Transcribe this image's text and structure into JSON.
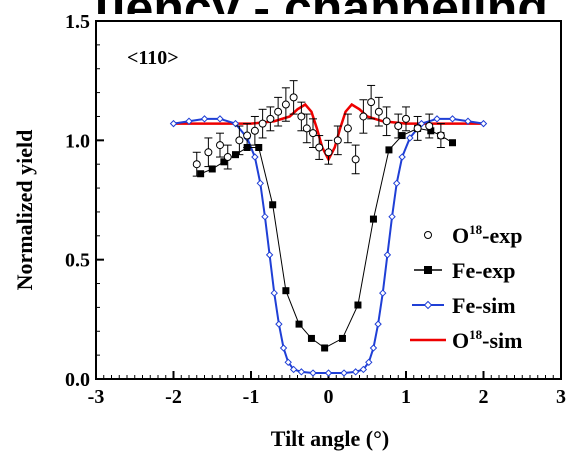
{
  "chart_data": {
    "type": "scatter",
    "title_fragment": "uency - channeling",
    "xlabel": "Tilt angle (°)",
    "ylabel": "Normalized yield",
    "annotation": "<110>",
    "xlim": [
      -3,
      3
    ],
    "ylim": [
      0.0,
      1.5
    ],
    "x_ticks": [
      "-3",
      "-2",
      "-1",
      "0",
      "1",
      "2",
      "3"
    ],
    "y_ticks": [
      "0.0",
      "0.5",
      "1.0",
      "1.5"
    ],
    "legend_position": "right",
    "legend": [
      {
        "base": "O",
        "sup": "18",
        "suffix": "-exp",
        "marker": "open-circle",
        "color": "#000000"
      },
      {
        "base": "Fe-exp",
        "sup": "",
        "suffix": "",
        "marker": "filled-square",
        "color": "#000000"
      },
      {
        "base": "Fe-sim",
        "sup": "",
        "suffix": "",
        "marker": "open-diamond",
        "color": "#1f3fd6"
      },
      {
        "base": "O",
        "sup": "18",
        "suffix": "-sim",
        "marker": "none",
        "color": "#ee0000"
      }
    ],
    "series": [
      {
        "name": "O18-exp",
        "style": "open-circle-errorbars",
        "color": "#000000",
        "points": [
          [
            -1.7,
            0.9,
            0.05
          ],
          [
            -1.55,
            0.95,
            0.06
          ],
          [
            -1.4,
            0.98,
            0.05
          ],
          [
            -1.3,
            0.93,
            0.05
          ],
          [
            -1.15,
            1.0,
            0.06
          ],
          [
            -1.05,
            1.02,
            0.05
          ],
          [
            -0.95,
            1.04,
            0.06
          ],
          [
            -0.85,
            1.07,
            0.06
          ],
          [
            -0.75,
            1.09,
            0.05
          ],
          [
            -0.65,
            1.12,
            0.06
          ],
          [
            -0.55,
            1.15,
            0.07
          ],
          [
            -0.45,
            1.18,
            0.07
          ],
          [
            -0.35,
            1.1,
            0.06
          ],
          [
            -0.28,
            1.05,
            0.06
          ],
          [
            -0.2,
            1.03,
            0.06
          ],
          [
            -0.12,
            0.97,
            0.05
          ],
          [
            0.0,
            0.95,
            0.05
          ],
          [
            0.12,
            1.0,
            0.06
          ],
          [
            0.25,
            1.05,
            0.06
          ],
          [
            0.35,
            0.92,
            0.06
          ],
          [
            0.45,
            1.1,
            0.07
          ],
          [
            0.55,
            1.16,
            0.07
          ],
          [
            0.65,
            1.12,
            0.06
          ],
          [
            0.75,
            1.08,
            0.06
          ],
          [
            0.9,
            1.06,
            0.05
          ],
          [
            1.0,
            1.09,
            0.05
          ],
          [
            1.15,
            1.05,
            0.05
          ],
          [
            1.3,
            1.06,
            0.05
          ],
          [
            1.45,
            1.02,
            0.05
          ]
        ]
      },
      {
        "name": "Fe-exp",
        "style": "filled-square-line",
        "color": "#000000",
        "points": [
          [
            -1.65,
            0.86
          ],
          [
            -1.5,
            0.88
          ],
          [
            -1.35,
            0.91
          ],
          [
            -1.2,
            0.94
          ],
          [
            -1.05,
            0.97
          ],
          [
            -0.9,
            0.97
          ],
          [
            -0.72,
            0.73
          ],
          [
            -0.55,
            0.37
          ],
          [
            -0.38,
            0.23
          ],
          [
            -0.22,
            0.17
          ],
          [
            -0.05,
            0.13
          ],
          [
            0.18,
            0.17
          ],
          [
            0.38,
            0.31
          ],
          [
            0.58,
            0.67
          ],
          [
            0.78,
            0.96
          ],
          [
            0.95,
            1.02
          ],
          [
            1.15,
            1.05
          ],
          [
            1.32,
            1.04
          ],
          [
            1.45,
            1.02
          ],
          [
            1.6,
            0.99
          ]
        ]
      },
      {
        "name": "Fe-sim",
        "style": "open-diamond-line",
        "color": "#1f3fd6",
        "points": [
          [
            -2.0,
            1.07
          ],
          [
            -1.8,
            1.08
          ],
          [
            -1.6,
            1.09
          ],
          [
            -1.4,
            1.09
          ],
          [
            -1.2,
            1.07
          ],
          [
            -1.05,
            1.01
          ],
          [
            -0.95,
            0.93
          ],
          [
            -0.88,
            0.82
          ],
          [
            -0.82,
            0.68
          ],
          [
            -0.76,
            0.52
          ],
          [
            -0.7,
            0.36
          ],
          [
            -0.64,
            0.23
          ],
          [
            -0.58,
            0.13
          ],
          [
            -0.52,
            0.07
          ],
          [
            -0.45,
            0.04
          ],
          [
            -0.35,
            0.03
          ],
          [
            -0.2,
            0.025
          ],
          [
            0.0,
            0.025
          ],
          [
            0.2,
            0.025
          ],
          [
            0.35,
            0.03
          ],
          [
            0.45,
            0.04
          ],
          [
            0.52,
            0.07
          ],
          [
            0.58,
            0.13
          ],
          [
            0.64,
            0.23
          ],
          [
            0.7,
            0.36
          ],
          [
            0.76,
            0.52
          ],
          [
            0.82,
            0.68
          ],
          [
            0.88,
            0.82
          ],
          [
            0.95,
            0.93
          ],
          [
            1.05,
            1.01
          ],
          [
            1.2,
            1.07
          ],
          [
            1.4,
            1.09
          ],
          [
            1.6,
            1.09
          ],
          [
            1.8,
            1.08
          ],
          [
            2.0,
            1.07
          ]
        ]
      },
      {
        "name": "O18-sim",
        "style": "line",
        "color": "#ee0000",
        "points": [
          [
            -2.0,
            1.07
          ],
          [
            -1.5,
            1.07
          ],
          [
            -1.0,
            1.07
          ],
          [
            -0.7,
            1.08
          ],
          [
            -0.5,
            1.1
          ],
          [
            -0.4,
            1.13
          ],
          [
            -0.3,
            1.15
          ],
          [
            -0.22,
            1.12
          ],
          [
            -0.15,
            1.05
          ],
          [
            -0.08,
            0.97
          ],
          [
            0.0,
            0.92
          ],
          [
            0.08,
            0.97
          ],
          [
            0.15,
            1.05
          ],
          [
            0.22,
            1.12
          ],
          [
            0.3,
            1.15
          ],
          [
            0.4,
            1.13
          ],
          [
            0.5,
            1.1
          ],
          [
            0.7,
            1.08
          ],
          [
            1.0,
            1.07
          ],
          [
            1.5,
            1.07
          ],
          [
            2.0,
            1.07
          ]
        ]
      }
    ]
  }
}
